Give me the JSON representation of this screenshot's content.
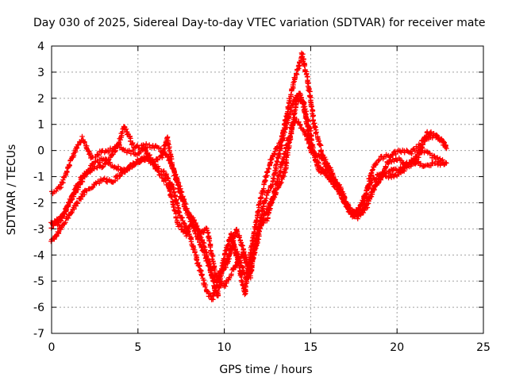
{
  "chart_data": {
    "type": "scatter",
    "title": "Day 030 of 2025, Sidereal Day-to-day VTEC variation (SDTVAR) for receiver mate",
    "xlabel": "GPS time / hours",
    "ylabel": "SDTVAR / TECUs",
    "xlim": [
      0,
      25
    ],
    "ylim": [
      -7,
      4
    ],
    "xticks": [
      0,
      5,
      10,
      15,
      20,
      25
    ],
    "yticks": [
      -7,
      -6,
      -5,
      -4,
      -3,
      -2,
      -1,
      0,
      1,
      2,
      3,
      4
    ],
    "grid": true,
    "marker": "+",
    "series": [
      {
        "color": "#ff0000",
        "tracks": [
          [
            [
              0.0,
              -1.6
            ],
            [
              0.5,
              -1.4
            ],
            [
              1.0,
              -0.6
            ],
            [
              1.5,
              0.2
            ],
            [
              1.8,
              0.5
            ],
            [
              2.3,
              -0.3
            ],
            [
              2.8,
              -0.1
            ],
            [
              3.3,
              0.0
            ],
            [
              3.8,
              0.2
            ],
            [
              4.2,
              0.0
            ],
            [
              5.0,
              -0.1
            ],
            [
              5.5,
              0.2
            ],
            [
              6.2,
              0.1
            ],
            [
              6.8,
              -0.3
            ],
            [
              7.3,
              -1.2
            ],
            [
              7.8,
              -2.2
            ],
            [
              8.3,
              -2.8
            ],
            [
              8.8,
              -3.6
            ],
            [
              9.2,
              -4.6
            ],
            [
              9.6,
              -5.6
            ],
            [
              10.0,
              -4.0
            ],
            [
              10.4,
              -3.2
            ],
            [
              10.9,
              -4.6
            ],
            [
              11.2,
              -5.5
            ],
            [
              11.6,
              -3.6
            ],
            [
              12.0,
              -2.2
            ],
            [
              12.4,
              -1.0
            ],
            [
              12.8,
              -0.2
            ],
            [
              13.3,
              0.4
            ],
            [
              13.7,
              1.6
            ],
            [
              14.0,
              2.6
            ],
            [
              14.3,
              3.2
            ],
            [
              14.5,
              3.7
            ],
            [
              14.8,
              2.8
            ],
            [
              15.2,
              1.0
            ],
            [
              15.7,
              -0.2
            ],
            [
              16.2,
              -0.8
            ],
            [
              16.8,
              -1.8
            ],
            [
              17.3,
              -2.4
            ],
            [
              17.8,
              -2.3
            ],
            [
              18.2,
              -1.6
            ],
            [
              18.6,
              -0.7
            ],
            [
              19.0,
              -0.3
            ],
            [
              19.6,
              -0.2
            ],
            [
              20.2,
              0.0
            ],
            [
              20.8,
              -0.1
            ],
            [
              21.3,
              0.2
            ],
            [
              21.8,
              0.7
            ],
            [
              22.4,
              0.5
            ],
            [
              22.9,
              0.1
            ]
          ],
          [
            [
              0.0,
              -2.9
            ],
            [
              0.6,
              -2.5
            ],
            [
              1.2,
              -1.8
            ],
            [
              1.8,
              -1.1
            ],
            [
              2.4,
              -0.5
            ],
            [
              3.0,
              -0.3
            ],
            [
              3.6,
              -0.6
            ],
            [
              4.2,
              -0.8
            ],
            [
              4.8,
              -0.5
            ],
            [
              5.4,
              -0.3
            ],
            [
              6.0,
              -0.4
            ],
            [
              6.4,
              -0.2
            ],
            [
              6.7,
              0.5
            ],
            [
              7.0,
              -0.6
            ],
            [
              7.5,
              -1.8
            ],
            [
              8.0,
              -2.6
            ],
            [
              8.5,
              -3.4
            ],
            [
              9.0,
              -4.2
            ],
            [
              9.4,
              -5.0
            ],
            [
              9.8,
              -4.6
            ],
            [
              10.3,
              -4.0
            ],
            [
              10.7,
              -3.0
            ],
            [
              11.1,
              -3.8
            ],
            [
              11.5,
              -4.8
            ],
            [
              11.9,
              -3.2
            ],
            [
              12.3,
              -2.0
            ],
            [
              12.8,
              -1.2
            ],
            [
              13.2,
              0.0
            ],
            [
              13.6,
              1.0
            ],
            [
              14.0,
              1.9
            ],
            [
              14.4,
              2.2
            ],
            [
              14.8,
              1.2
            ],
            [
              15.3,
              -0.4
            ],
            [
              15.9,
              -0.9
            ],
            [
              16.5,
              -1.5
            ],
            [
              17.0,
              -2.0
            ],
            [
              17.5,
              -2.5
            ],
            [
              18.0,
              -2.0
            ],
            [
              18.5,
              -1.2
            ],
            [
              19.0,
              -0.9
            ],
            [
              19.6,
              -0.8
            ],
            [
              20.2,
              -0.7
            ],
            [
              20.8,
              -0.4
            ],
            [
              21.4,
              0.0
            ],
            [
              22.0,
              -0.2
            ],
            [
              22.6,
              -0.4
            ],
            [
              22.9,
              -0.5
            ]
          ],
          [
            [
              0.0,
              -3.5
            ],
            [
              0.5,
              -3.0
            ],
            [
              1.0,
              -2.5
            ],
            [
              1.5,
              -2.0
            ],
            [
              2.0,
              -1.5
            ],
            [
              2.5,
              -1.3
            ],
            [
              3.0,
              -1.1
            ],
            [
              3.5,
              -1.2
            ],
            [
              4.0,
              -0.9
            ],
            [
              4.5,
              -0.6
            ],
            [
              5.0,
              -0.4
            ],
            [
              5.5,
              -0.3
            ],
            [
              6.0,
              -0.6
            ],
            [
              6.5,
              -0.8
            ],
            [
              7.0,
              -1.4
            ],
            [
              7.5,
              -2.6
            ],
            [
              8.0,
              -3.2
            ],
            [
              8.5,
              -4.4
            ],
            [
              9.0,
              -5.4
            ],
            [
              9.3,
              -5.7
            ],
            [
              9.7,
              -4.8
            ],
            [
              10.1,
              -4.4
            ],
            [
              10.5,
              -3.6
            ],
            [
              10.9,
              -4.2
            ],
            [
              11.3,
              -5.0
            ],
            [
              11.7,
              -4.0
            ],
            [
              12.1,
              -2.8
            ],
            [
              12.5,
              -2.6
            ],
            [
              12.9,
              -1.6
            ],
            [
              13.3,
              -0.6
            ],
            [
              13.7,
              0.4
            ],
            [
              14.1,
              1.2
            ],
            [
              14.5,
              0.9
            ],
            [
              15.0,
              0.2
            ],
            [
              15.5,
              -0.8
            ],
            [
              16.1,
              -1.0
            ],
            [
              16.7,
              -1.4
            ],
            [
              17.2,
              -2.2
            ],
            [
              17.7,
              -2.6
            ],
            [
              18.2,
              -2.2
            ],
            [
              18.7,
              -1.4
            ],
            [
              19.2,
              -1.0
            ],
            [
              19.7,
              -1.0
            ],
            [
              20.3,
              -0.8
            ],
            [
              20.9,
              -0.4
            ],
            [
              21.5,
              -0.6
            ],
            [
              22.1,
              -0.5
            ],
            [
              22.7,
              -0.5
            ],
            [
              22.9,
              -0.4
            ]
          ],
          [
            [
              0.0,
              -2.8
            ],
            [
              0.4,
              -2.8
            ],
            [
              0.9,
              -2.2
            ],
            [
              1.4,
              -1.4
            ],
            [
              1.9,
              -0.9
            ],
            [
              2.4,
              -0.7
            ],
            [
              2.9,
              -0.6
            ],
            [
              3.4,
              -0.3
            ],
            [
              3.9,
              0.3
            ],
            [
              4.2,
              0.9
            ],
            [
              4.8,
              0.1
            ],
            [
              5.3,
              0.2
            ],
            [
              5.8,
              -0.4
            ],
            [
              6.3,
              -0.9
            ],
            [
              6.8,
              -1.4
            ],
            [
              7.3,
              -2.8
            ],
            [
              7.8,
              -3.2
            ],
            [
              8.2,
              -2.6
            ],
            [
              8.6,
              -3.2
            ],
            [
              9.0,
              -3.0
            ],
            [
              9.5,
              -4.8
            ],
            [
              10.0,
              -5.2
            ],
            [
              10.5,
              -4.6
            ],
            [
              11.0,
              -4.0
            ],
            [
              11.4,
              -4.4
            ],
            [
              11.8,
              -3.8
            ],
            [
              12.2,
              -2.6
            ],
            [
              12.6,
              -2.1
            ],
            [
              13.0,
              -1.6
            ],
            [
              13.5,
              -0.8
            ],
            [
              13.9,
              0.8
            ],
            [
              14.2,
              2.0
            ],
            [
              14.6,
              1.8
            ],
            [
              15.0,
              0.0
            ],
            [
              15.6,
              -0.2
            ],
            [
              16.2,
              -1.0
            ],
            [
              16.8,
              -1.6
            ],
            [
              17.4,
              -2.5
            ],
            [
              17.9,
              -2.4
            ],
            [
              18.4,
              -1.8
            ],
            [
              18.9,
              -1.2
            ],
            [
              19.5,
              -0.4
            ],
            [
              20.1,
              -0.3
            ],
            [
              20.6,
              -0.6
            ],
            [
              21.1,
              -0.4
            ],
            [
              21.6,
              0.4
            ],
            [
              22.2,
              0.6
            ],
            [
              22.7,
              0.3
            ],
            [
              22.9,
              0.1
            ]
          ]
        ]
      }
    ]
  }
}
